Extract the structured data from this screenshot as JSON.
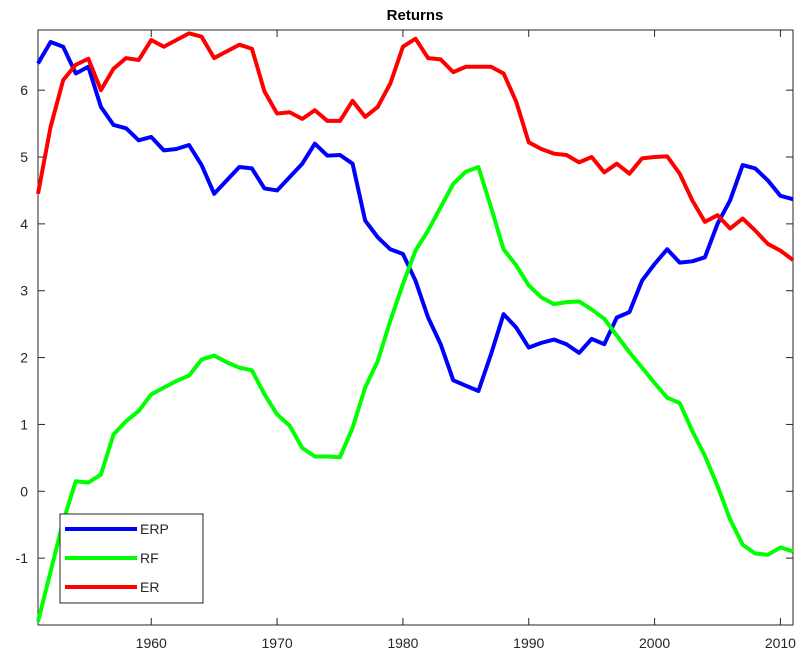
{
  "chart_data": {
    "type": "line",
    "title": "Returns",
    "x": [
      1951,
      1952,
      1953,
      1954,
      1955,
      1956,
      1957,
      1958,
      1959,
      1960,
      1961,
      1962,
      1963,
      1964,
      1965,
      1966,
      1967,
      1968,
      1969,
      1970,
      1971,
      1972,
      1973,
      1974,
      1975,
      1976,
      1977,
      1978,
      1979,
      1980,
      1981,
      1982,
      1983,
      1984,
      1985,
      1986,
      1987,
      1988,
      1989,
      1990,
      1991,
      1992,
      1993,
      1994,
      1995,
      1996,
      1997,
      1998,
      1999,
      2000,
      2001,
      2002,
      2003,
      2004,
      2005,
      2006,
      2007,
      2008,
      2009,
      2010,
      2011
    ],
    "series": [
      {
        "name": "ERP",
        "color": "#0000ff",
        "values": [
          6.4,
          6.72,
          6.65,
          6.25,
          6.35,
          5.75,
          5.48,
          5.43,
          5.25,
          5.3,
          5.1,
          5.12,
          5.18,
          4.88,
          4.45,
          4.65,
          4.85,
          4.83,
          4.53,
          4.5,
          4.7,
          4.9,
          5.2,
          5.02,
          5.03,
          4.9,
          4.05,
          3.8,
          3.62,
          3.55,
          3.15,
          2.6,
          2.2,
          1.66,
          1.58,
          1.5,
          2.05,
          2.65,
          2.45,
          2.15,
          2.22,
          2.27,
          2.2,
          2.07,
          2.28,
          2.2,
          2.6,
          2.68,
          3.15,
          3.4,
          3.62,
          3.42,
          3.44,
          3.5,
          4.0,
          4.35,
          4.88,
          4.83,
          4.65,
          4.42,
          4.37
        ]
      },
      {
        "name": "RF",
        "color": "#00ff00",
        "values": [
          -1.95,
          -1.2,
          -0.45,
          0.15,
          0.13,
          0.25,
          0.85,
          1.05,
          1.2,
          1.45,
          1.55,
          1.65,
          1.73,
          1.97,
          2.03,
          1.93,
          1.85,
          1.81,
          1.45,
          1.15,
          0.98,
          0.65,
          0.52,
          0.52,
          0.51,
          0.95,
          1.55,
          1.95,
          2.55,
          3.1,
          3.6,
          3.9,
          4.25,
          4.6,
          4.78,
          4.85,
          4.25,
          3.62,
          3.38,
          3.08,
          2.9,
          2.8,
          2.83,
          2.84,
          2.72,
          2.58,
          2.33,
          2.08,
          1.85,
          1.62,
          1.4,
          1.32,
          0.9,
          0.53,
          0.08,
          -0.42,
          -0.8,
          -0.93,
          -0.95,
          -0.84,
          -0.9
        ]
      },
      {
        "name": "ER",
        "color": "#ff0000",
        "values": [
          4.45,
          5.45,
          6.15,
          6.38,
          6.47,
          6.0,
          6.32,
          6.48,
          6.45,
          6.75,
          6.65,
          6.75,
          6.85,
          6.8,
          6.48,
          6.58,
          6.68,
          6.62,
          5.98,
          5.65,
          5.67,
          5.57,
          5.7,
          5.54,
          5.54,
          5.84,
          5.6,
          5.75,
          6.1,
          6.65,
          6.77,
          6.48,
          6.46,
          6.27,
          6.35,
          6.35,
          6.35,
          6.25,
          5.83,
          5.22,
          5.12,
          5.05,
          5.03,
          4.92,
          5.0,
          4.77,
          4.9,
          4.75,
          4.98,
          5.0,
          5.01,
          4.75,
          4.35,
          4.03,
          4.13,
          3.93,
          4.08,
          3.9,
          3.7,
          3.6,
          3.46
        ]
      }
    ],
    "xlim": [
      1951,
      2011
    ],
    "ylim": [
      -2,
      6.9
    ],
    "xticks": [
      1960,
      1970,
      1980,
      1990,
      2000,
      2010
    ],
    "yticks": [
      -1,
      0,
      1,
      2,
      3,
      4,
      5,
      6
    ],
    "legend": "lower left"
  }
}
